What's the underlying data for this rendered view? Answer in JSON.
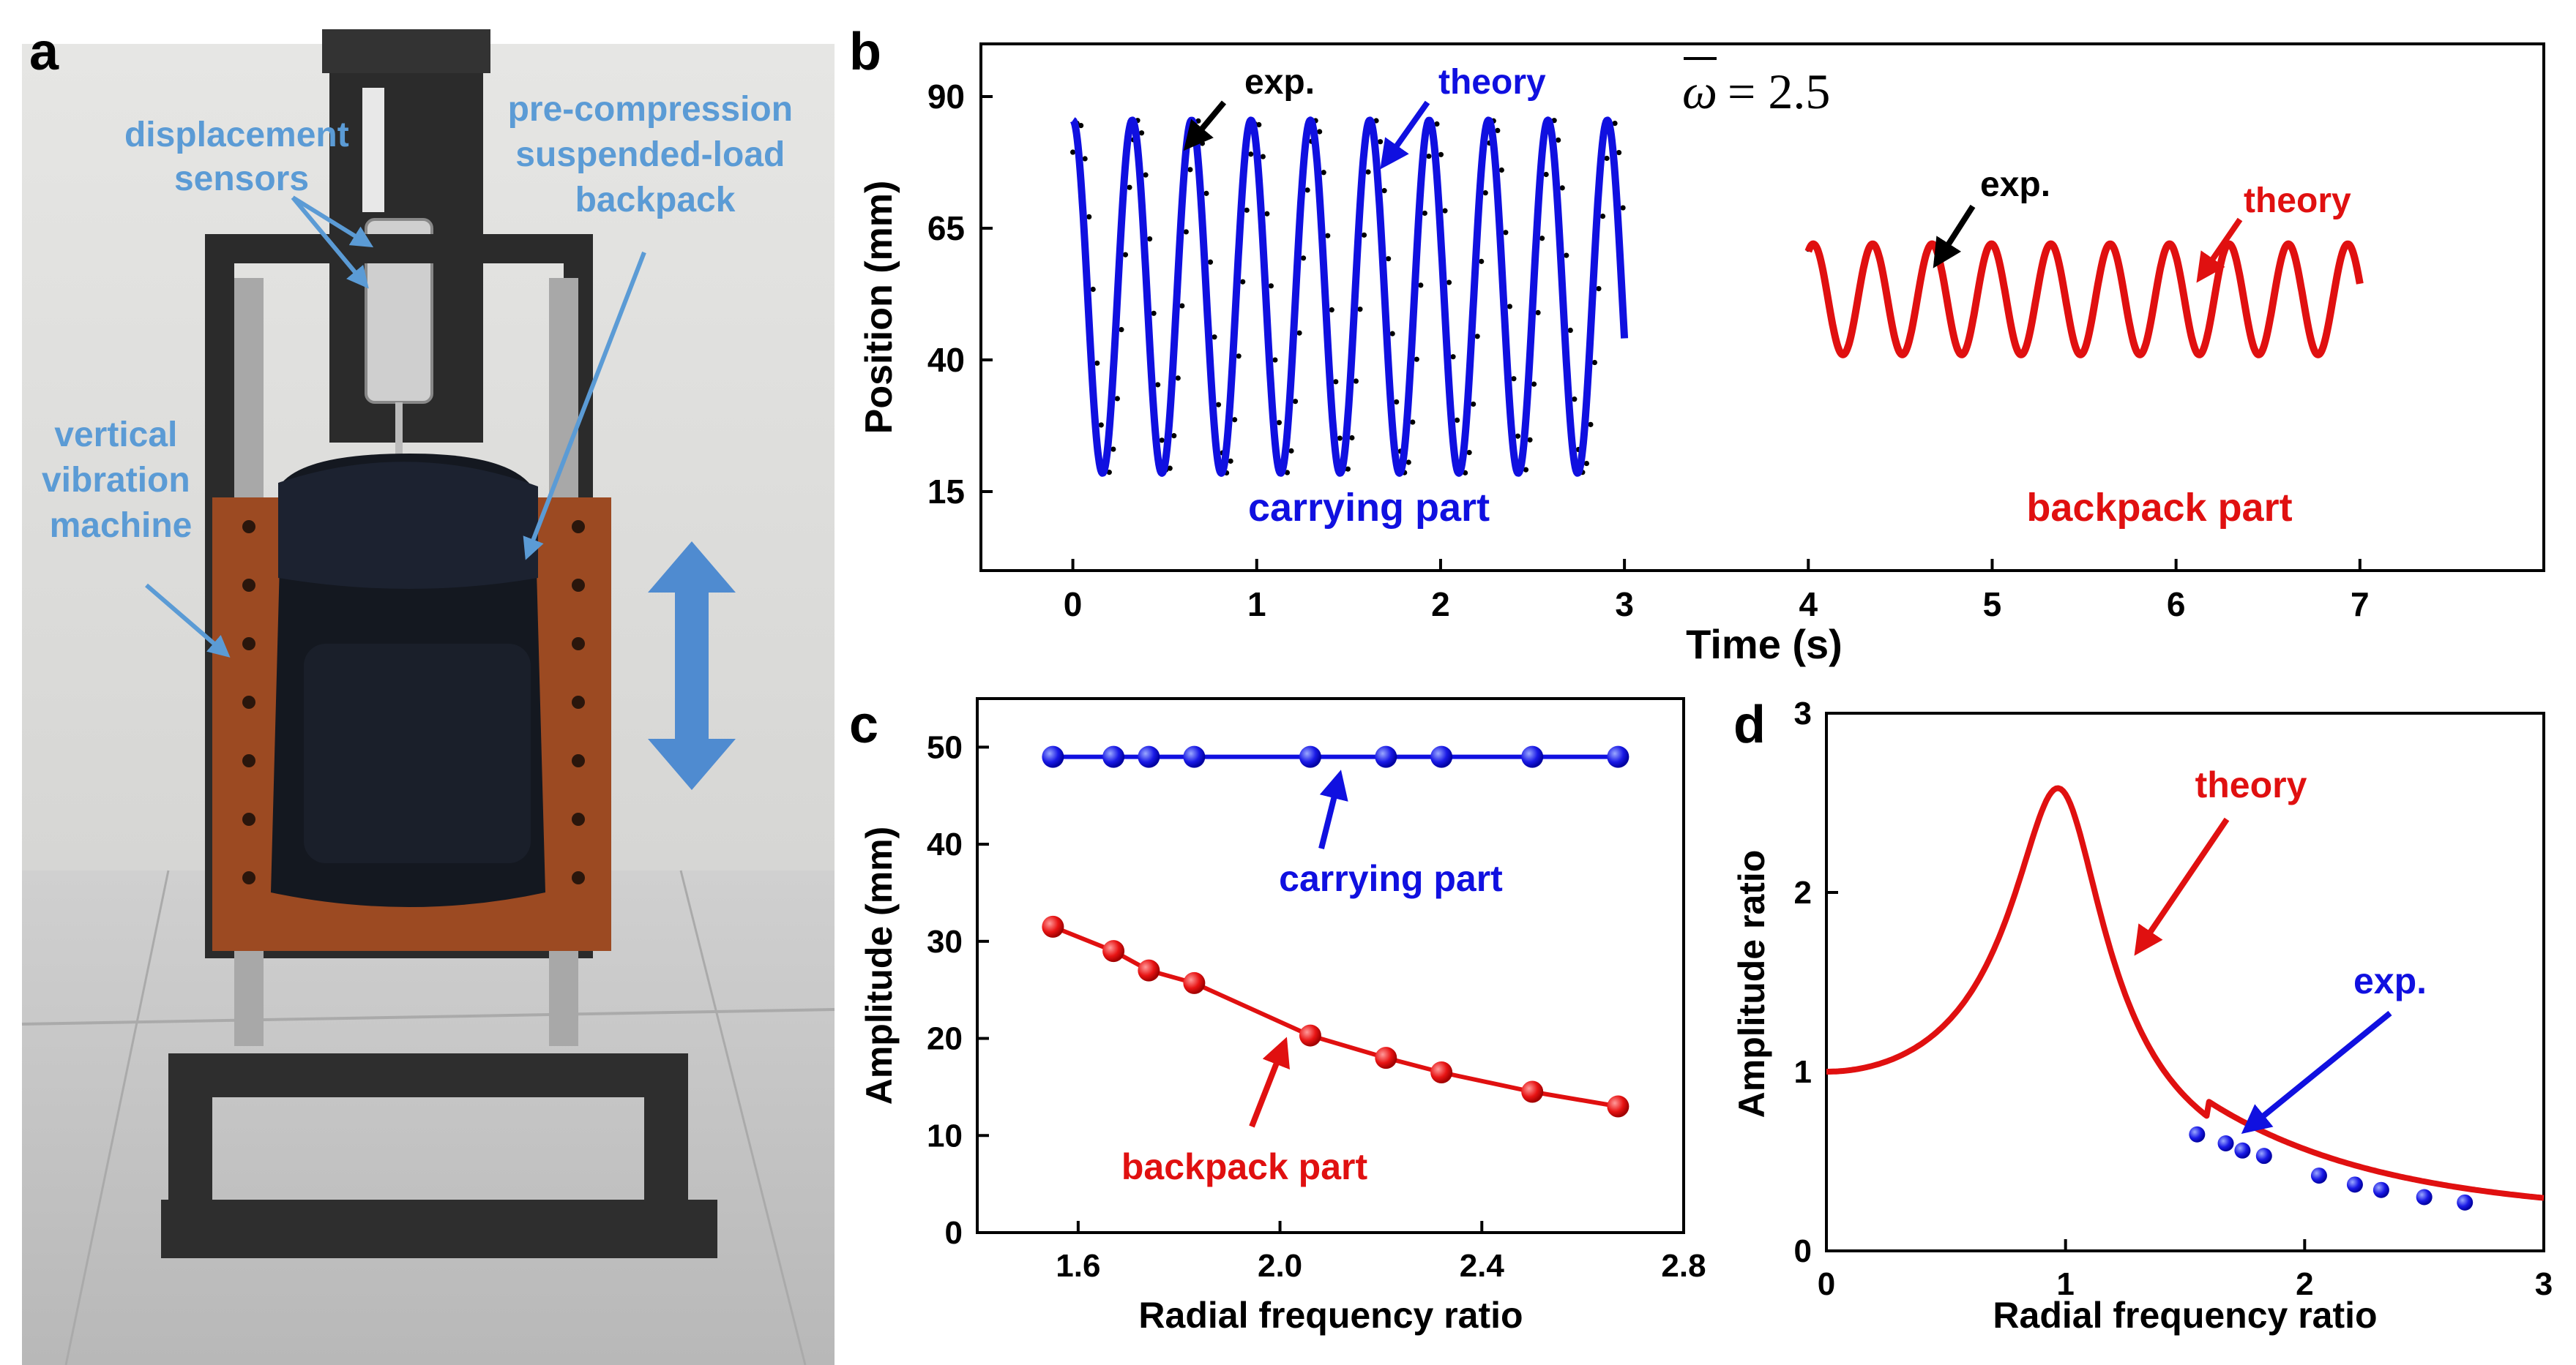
{
  "panel_labels": {
    "a": "a",
    "b": "b",
    "c": "c",
    "d": "d"
  },
  "photo": {
    "labels": {
      "displacement_sensors": [
        "displacement",
        "sensors"
      ],
      "backpack": [
        "pre-compression",
        "suspended-load",
        "backpack"
      ],
      "machine": [
        "vertical",
        "vibration",
        "machine"
      ]
    },
    "colors": {
      "label": "#5B9BD5",
      "frame": "#2b2b2b",
      "plate": "#9c4a22",
      "pack": "#141820",
      "arrow": "#4F8BD0"
    }
  },
  "colors": {
    "blue": "#1010e0",
    "red": "#e01010",
    "black": "#000000"
  },
  "chart_data": [
    {
      "id": "b",
      "type": "line",
      "xlabel": "Time (s)",
      "ylabel": "Position (mm)",
      "xlim": [
        -0.5,
        8.0
      ],
      "ylim": [
        0,
        100
      ],
      "xticks": [
        0,
        1,
        2,
        3,
        4,
        5,
        6,
        7
      ],
      "yticks": [
        15,
        40,
        65,
        90
      ],
      "annotation": "ω̄ = 2.5",
      "omega_symbol": "ω",
      "omega_value": "= 2.5",
      "series": [
        {
          "name": "carrying part",
          "kind": "theory",
          "t_start": 0,
          "t_end": 3.0,
          "mean": 52,
          "amplitude": 33.5,
          "period": 0.323,
          "phase_deg": 90,
          "label": "carrying part",
          "theory_label": "theory",
          "exp_label": "exp.",
          "exp_phase_deg": 55
        },
        {
          "name": "backpack part",
          "kind": "theory",
          "t_start": 4.0,
          "t_end": 7.0,
          "mean": 51.5,
          "amplitude": 10.5,
          "period": 0.323,
          "phase_deg": 60,
          "label": "backpack part",
          "theory_label": "theory",
          "exp_label": "exp.",
          "exp_phase_deg": 65
        }
      ]
    },
    {
      "id": "c",
      "type": "line",
      "xlabel": "Radial frequency ratio",
      "ylabel": "Amplitude (mm)",
      "xlim": [
        1.4,
        2.8
      ],
      "ylim": [
        0,
        55
      ],
      "xticks": [
        1.6,
        2.0,
        2.4,
        2.8
      ],
      "xtick_labels": [
        "1.6",
        "2.0",
        "2.4",
        "2.8"
      ],
      "yticks": [
        0,
        10,
        20,
        30,
        40,
        50
      ],
      "series": [
        {
          "name": "carrying part",
          "x": [
            1.55,
            1.67,
            1.74,
            1.83,
            2.06,
            2.21,
            2.32,
            2.5,
            2.67
          ],
          "y": [
            49,
            49,
            49,
            49,
            49,
            49,
            49,
            49,
            49
          ]
        },
        {
          "name": "backpack part",
          "x": [
            1.55,
            1.67,
            1.74,
            1.83,
            2.06,
            2.21,
            2.32,
            2.5,
            2.67
          ],
          "y": [
            31.5,
            29,
            27,
            25.7,
            20.3,
            18,
            16.5,
            14.5,
            13
          ]
        }
      ]
    },
    {
      "id": "d",
      "type": "line",
      "xlabel": "Radial frequency ratio",
      "ylabel": "Amplitude ratio",
      "xlim": [
        0,
        3
      ],
      "ylim": [
        0,
        3
      ],
      "xticks": [
        0,
        1,
        2,
        3
      ],
      "yticks": [
        0,
        1,
        2,
        3
      ],
      "series": [
        {
          "name": "theory",
          "kind": "curve",
          "damping": 0.19,
          "peak_x": 0.96,
          "peak_y": 2.58,
          "at_zero": 1.0,
          "at_three": 0.2
        },
        {
          "name": "exp.",
          "x": [
            1.55,
            1.67,
            1.74,
            1.83,
            2.06,
            2.21,
            2.32,
            2.5,
            2.67
          ],
          "y": [
            0.65,
            0.6,
            0.56,
            0.53,
            0.42,
            0.37,
            0.34,
            0.3,
            0.27
          ]
        }
      ]
    }
  ]
}
